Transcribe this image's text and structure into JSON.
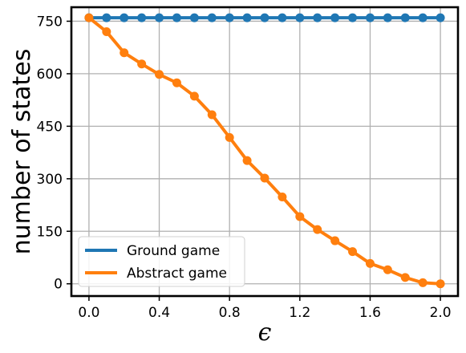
{
  "chart_data": {
    "type": "line",
    "title": "",
    "xlabel": "ϵ",
    "ylabel": "number of states",
    "xlim": [
      -0.1,
      2.1
    ],
    "ylim": [
      -35,
      790
    ],
    "x_ticks": [
      0.0,
      0.4,
      0.8,
      1.2,
      1.6,
      2.0
    ],
    "x_tick_labels": [
      "0.0",
      "0.4",
      "0.8",
      "1.2",
      "1.6",
      "2.0"
    ],
    "y_ticks": [
      0,
      150,
      300,
      450,
      600,
      750
    ],
    "y_tick_labels": [
      "0",
      "150",
      "300",
      "450",
      "600",
      "750"
    ],
    "grid": true,
    "legend_position": "lower-left",
    "x": [
      0.0,
      0.1,
      0.2,
      0.3,
      0.4,
      0.5,
      0.6,
      0.7,
      0.8,
      0.9,
      1.0,
      1.1,
      1.2,
      1.3,
      1.4,
      1.5,
      1.6,
      1.7,
      1.8,
      1.9,
      2.0
    ],
    "series": [
      {
        "name": "Ground game",
        "color": "#1f77b4",
        "values": [
          760,
          760,
          760,
          760,
          760,
          760,
          760,
          760,
          760,
          760,
          760,
          760,
          760,
          760,
          760,
          760,
          760,
          760,
          760,
          760,
          760
        ]
      },
      {
        "name": "Abstract game",
        "color": "#ff7f0e",
        "values": [
          760,
          720,
          660,
          628,
          598,
          574,
          536,
          483,
          418,
          352,
          302,
          248,
          192,
          155,
          123,
          92,
          58,
          40,
          18,
          3,
          0
        ]
      }
    ]
  }
}
